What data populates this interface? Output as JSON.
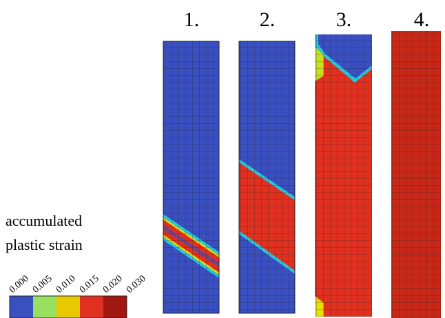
{
  "panels": [
    {
      "label": "1."
    },
    {
      "label": "2."
    },
    {
      "label": "3."
    },
    {
      "label": "4."
    }
  ],
  "legend": {
    "title_lines": [
      "accumulated",
      "plastic strain"
    ],
    "ticks": [
      "0.000",
      "0.005",
      "0.010",
      "0.015",
      "0.020",
      "0.030"
    ]
  }
}
